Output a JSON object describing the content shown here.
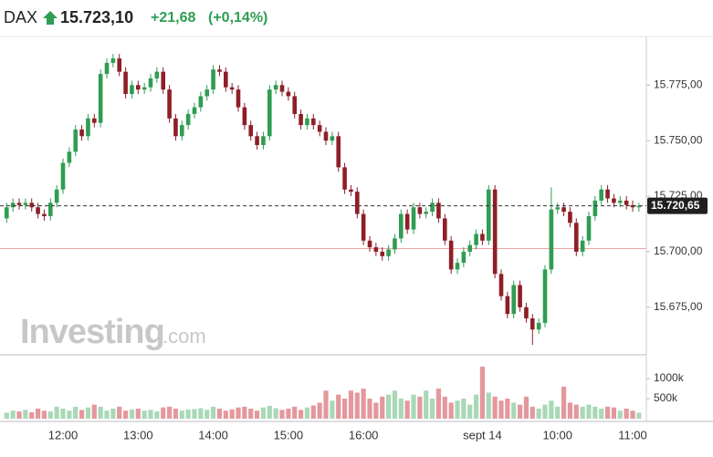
{
  "header": {
    "symbol": "DAX",
    "price": "15.723,10",
    "change": "+21,68",
    "change_pct": "(+0,14%)"
  },
  "watermark": {
    "brand": "Investing",
    "suffix": ".com"
  },
  "chart_data": {
    "type": "candlestick",
    "categories": [
      null,
      null,
      null,
      null,
      null,
      null,
      null,
      null,
      null,
      "12:00",
      null,
      null,
      null,
      null,
      null,
      null,
      null,
      null,
      null,
      null,
      null,
      "13:00",
      null,
      null,
      null,
      null,
      null,
      null,
      null,
      null,
      null,
      null,
      null,
      "14:00",
      null,
      null,
      null,
      null,
      null,
      null,
      null,
      null,
      null,
      null,
      null,
      "15:00",
      null,
      null,
      null,
      null,
      null,
      null,
      null,
      null,
      null,
      null,
      null,
      "16:00",
      null,
      null,
      null,
      null,
      null,
      null,
      null,
      null,
      null,
      null,
      null,
      null,
      null,
      null,
      null,
      null,
      null,
      null,
      "sept 14",
      null,
      null,
      null,
      null,
      null,
      null,
      null,
      null,
      null,
      null,
      null,
      "10:00",
      null,
      null,
      null,
      null,
      null,
      null,
      null,
      null,
      null,
      null,
      null,
      "11:00",
      null
    ],
    "open": [
      15715,
      15720,
      15722,
      15721,
      15722,
      15720,
      15717,
      15716,
      15722,
      15728,
      15740,
      15745,
      15755,
      15752,
      15760,
      15758,
      15780,
      15785,
      15787,
      15781,
      15771,
      15775,
      15773,
      15774,
      15778,
      15781,
      15773,
      15760,
      15752,
      15757,
      15762,
      15765,
      15770,
      15773,
      15782,
      15781,
      15774,
      15773,
      15765,
      15757,
      15752,
      15748,
      15752,
      15773,
      15775,
      15772,
      15770,
      15762,
      15757,
      15760,
      15757,
      15754,
      15750,
      15752,
      15738,
      15728,
      15727,
      15717,
      15705,
      15702,
      15700,
      15698,
      15701,
      15706,
      15717,
      15710,
      15720,
      15717,
      15718,
      15722,
      15715,
      15705,
      15692,
      15695,
      15700,
      15703,
      15708,
      15705,
      15728,
      15690,
      15680,
      15672,
      15685,
      15675,
      15670,
      15665,
      15668,
      15692,
      15719,
      15720,
      15718,
      15713,
      15700,
      15705,
      15716,
      15723,
      15728,
      15724,
      15722,
      15723,
      15721,
      15720
    ],
    "high": [
      15722,
      15724,
      15724,
      15724,
      15724,
      15722,
      15719,
      15724,
      15730,
      15742,
      15747,
      15757,
      15757,
      15762,
      15762,
      15782,
      15787,
      15789,
      15789,
      15783,
      15777,
      15777,
      15776,
      15780,
      15783,
      15783,
      15775,
      15762,
      15759,
      15764,
      15767,
      15772,
      15775,
      15784,
      15784,
      15783,
      15776,
      15775,
      15767,
      15759,
      15754,
      15754,
      15775,
      15777,
      15777,
      15774,
      15772,
      15764,
      15762,
      15762,
      15759,
      15756,
      15754,
      15754,
      15740,
      15730,
      15729,
      15719,
      15707,
      15704,
      15702,
      15703,
      15708,
      15719,
      15719,
      15722,
      15722,
      15720,
      15724,
      15724,
      15717,
      15707,
      15697,
      15702,
      15705,
      15710,
      15710,
      15730,
      15730,
      15692,
      15682,
      15687,
      15687,
      15677,
      15672,
      15670,
      15694,
      15729,
      15722,
      15722,
      15720,
      15715,
      15707,
      15718,
      15725,
      15730,
      15730,
      15726,
      15725,
      15725,
      15723,
      15722
    ],
    "low": [
      15713,
      15718,
      15719,
      15719,
      15718,
      15715,
      15714,
      15714,
      15720,
      15726,
      15738,
      15743,
      15750,
      15750,
      15756,
      15756,
      15778,
      15783,
      15779,
      15769,
      15769,
      15771,
      15771,
      15772,
      15776,
      15771,
      15758,
      15750,
      15750,
      15755,
      15760,
      15763,
      15768,
      15771,
      15779,
      15772,
      15771,
      15763,
      15755,
      15750,
      15746,
      15746,
      15750,
      15771,
      15770,
      15768,
      15760,
      15755,
      15755,
      15755,
      15752,
      15748,
      15748,
      15736,
      15726,
      15725,
      15715,
      15703,
      15700,
      15698,
      15696,
      15696,
      15699,
      15704,
      15708,
      15708,
      15715,
      15715,
      15716,
      15713,
      15703,
      15690,
      15690,
      15693,
      15698,
      15701,
      15703,
      15703,
      15688,
      15678,
      15670,
      15670,
      15673,
      15668,
      15658,
      15663,
      15666,
      15690,
      15717,
      15716,
      15711,
      15698,
      15698,
      15703,
      15714,
      15721,
      15722,
      15720,
      15720,
      15719,
      15718,
      15718
    ],
    "close": [
      15720,
      15722,
      15721,
      15722,
      15720,
      15717,
      15716,
      15722,
      15728,
      15740,
      15745,
      15755,
      15752,
      15760,
      15758,
      15780,
      15785,
      15787,
      15781,
      15771,
      15775,
      15773,
      15774,
      15778,
      15781,
      15773,
      15760,
      15752,
      15757,
      15762,
      15765,
      15770,
      15773,
      15782,
      15781,
      15774,
      15773,
      15765,
      15757,
      15752,
      15748,
      15752,
      15773,
      15775,
      15772,
      15770,
      15762,
      15757,
      15760,
      15757,
      15754,
      15750,
      15752,
      15738,
      15728,
      15727,
      15717,
      15705,
      15702,
      15700,
      15698,
      15701,
      15706,
      15717,
      15710,
      15720,
      15717,
      15718,
      15722,
      15715,
      15705,
      15692,
      15695,
      15700,
      15703,
      15708,
      15705,
      15728,
      15690,
      15680,
      15672,
      15685,
      15675,
      15670,
      15665,
      15668,
      15692,
      15719,
      15720,
      15718,
      15713,
      15700,
      15705,
      15716,
      15723,
      15728,
      15724,
      15722,
      15723,
      15721,
      15720,
      15720.65
    ],
    "volume": [
      150000,
      200000,
      180000,
      220000,
      160000,
      250000,
      200000,
      180000,
      300000,
      250000,
      200000,
      300000,
      220000,
      280000,
      350000,
      300000,
      200000,
      250000,
      300000,
      200000,
      230000,
      250000,
      200000,
      220000,
      180000,
      280000,
      300000,
      250000,
      200000,
      230000,
      240000,
      260000,
      220000,
      300000,
      250000,
      200000,
      230000,
      280000,
      300000,
      250000,
      200000,
      280000,
      320000,
      260000,
      220000,
      250000,
      300000,
      220000,
      280000,
      330000,
      400000,
      700000,
      450000,
      600000,
      500000,
      700000,
      650000,
      750000,
      500000,
      400000,
      550000,
      600000,
      700000,
      500000,
      450000,
      600000,
      550000,
      700000,
      500000,
      750000,
      550000,
      400000,
      450000,
      500000,
      350000,
      600000,
      1300000,
      650000,
      550000,
      450000,
      500000,
      400000,
      350000,
      550000,
      300000,
      250000,
      350000,
      450000,
      300000,
      800000,
      400000,
      350000,
      300000,
      350000,
      300000,
      250000,
      300000,
      280000,
      200000,
      250000,
      200000,
      150000
    ],
    "ylim": [
      15654,
      15794
    ],
    "yticks": [
      {
        "value": 15675,
        "label": "15.675,00"
      },
      {
        "value": 15700,
        "label": "15.700,00"
      },
      {
        "value": 15725,
        "label": "15.725,00"
      },
      {
        "value": 15750,
        "label": "15.750,00"
      },
      {
        "value": 15775,
        "label": "15.775,00"
      }
    ],
    "volume_ylim": [
      0,
      1570000
    ],
    "volume_yticks": [
      {
        "value": 500000,
        "label": "500k"
      },
      {
        "value": 1000000,
        "label": "1000k"
      }
    ],
    "last_price": {
      "value": 15720.65,
      "label": "15.720,65"
    },
    "reference_line": 15701.42,
    "up_color": "#2f9d52",
    "down_color": "#8e1e27",
    "volume_up_color": "#a9d8b6",
    "volume_down_color": "#e3989d",
    "reference_color": "#f2a3a3"
  }
}
